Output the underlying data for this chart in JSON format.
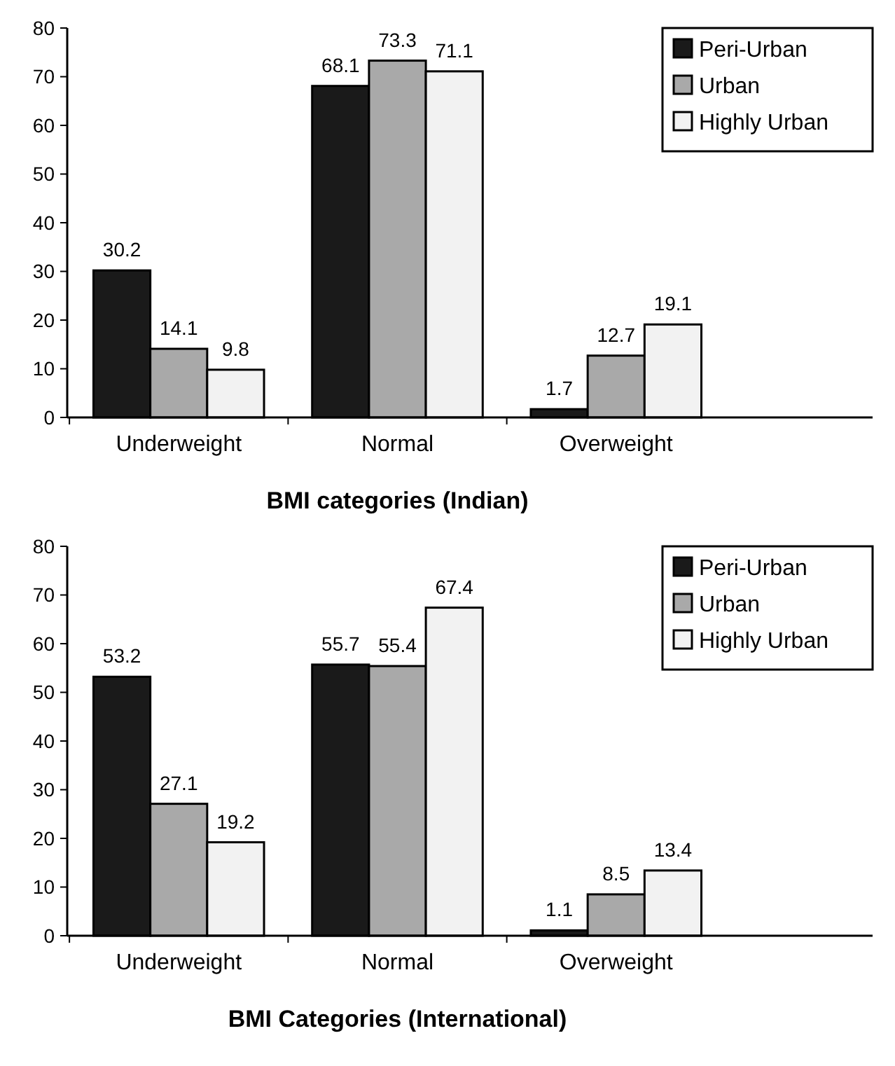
{
  "chart_data": [
    {
      "type": "bar",
      "xlabel": "BMI categories (Indian)",
      "categories": [
        "Underweight",
        "Normal",
        "Overweight"
      ],
      "series": [
        {
          "name": "Peri-Urban",
          "color": "#1a1a1a",
          "values": [
            30.2,
            68.1,
            1.7
          ]
        },
        {
          "name": "Urban",
          "color": "#a9a9a9",
          "values": [
            14.1,
            73.3,
            12.7
          ]
        },
        {
          "name": "Highly Urban",
          "color": "#f2f2f2",
          "values": [
            9.8,
            71.1,
            19.1
          ]
        }
      ],
      "ylim": [
        0,
        80
      ],
      "yticks": [
        0,
        10,
        20,
        30,
        40,
        50,
        60,
        70,
        80
      ],
      "grid": false,
      "legend": "top right",
      "data_labels": true
    },
    {
      "type": "bar",
      "xlabel": "BMI Categories (International)",
      "categories": [
        "Underweight",
        "Normal",
        "Overweight"
      ],
      "series": [
        {
          "name": "Peri-Urban",
          "color": "#1a1a1a",
          "values": [
            53.2,
            55.7,
            1.1
          ]
        },
        {
          "name": "Urban",
          "color": "#a9a9a9",
          "values": [
            27.1,
            55.4,
            8.5
          ]
        },
        {
          "name": "Highly Urban",
          "color": "#f2f2f2",
          "values": [
            19.2,
            67.4,
            13.4
          ]
        }
      ],
      "ylim": [
        0,
        80
      ],
      "yticks": [
        0,
        10,
        20,
        30,
        40,
        50,
        60,
        70,
        80
      ],
      "grid": false,
      "legend": "top right",
      "data_labels": true
    }
  ]
}
